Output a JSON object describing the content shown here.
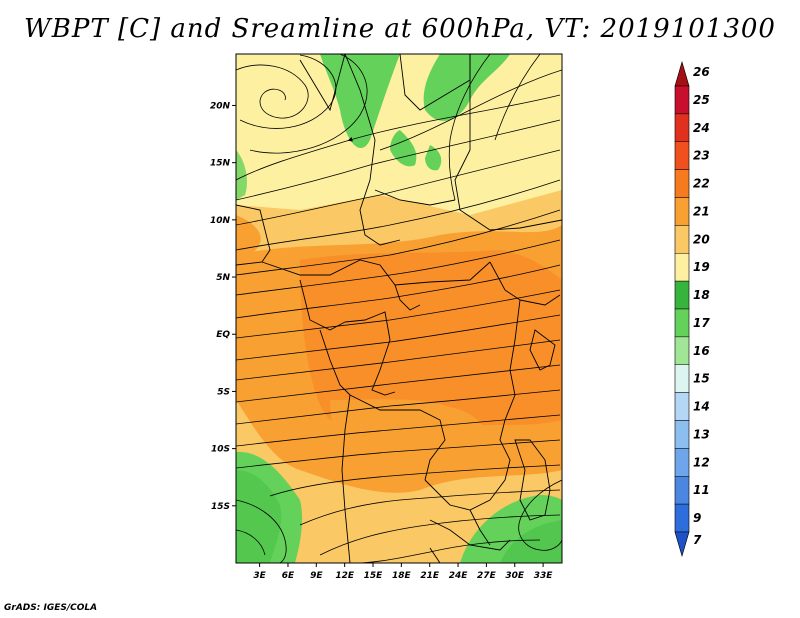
{
  "title": "WBPT [C] and Sreamline at 600hPa, VT: 2019101300",
  "credit": "GrADS: IGES/COLA",
  "map": {
    "lat_ticks": [
      "20N",
      "15N",
      "10N",
      "5N",
      "EQ",
      "5S",
      "10S",
      "15S"
    ],
    "lon_ticks": [
      "3E",
      "6E",
      "9E",
      "12E",
      "15E",
      "18E",
      "21E",
      "24E",
      "27E",
      "30E",
      "33E"
    ],
    "lat_values": [
      20,
      15,
      10,
      5,
      0,
      -5,
      -10,
      -15
    ],
    "lon_values": [
      3,
      6,
      9,
      12,
      15,
      18,
      21,
      24,
      27,
      30,
      33
    ],
    "lon_range": [
      0.5,
      35
    ],
    "lat_range": [
      -20,
      24.5
    ]
  },
  "colorbar": {
    "levels": [
      "26",
      "25",
      "24",
      "23",
      "22",
      "21",
      "20",
      "19",
      "18",
      "17",
      "16",
      "15",
      "14",
      "13",
      "12",
      "11",
      "9",
      "7"
    ],
    "colors": [
      "#a50f15",
      "#c8102e",
      "#e0301e",
      "#f0501e",
      "#f87a1e",
      "#f8a032",
      "#fac864",
      "#fdf0a0",
      "#37b43c",
      "#64d25a",
      "#a0e696",
      "#dcf5f0",
      "#b4d7f5",
      "#8cbef0",
      "#6ea5eb",
      "#4b87e1",
      "#2d6edc",
      "#1e50c8"
    ]
  }
}
